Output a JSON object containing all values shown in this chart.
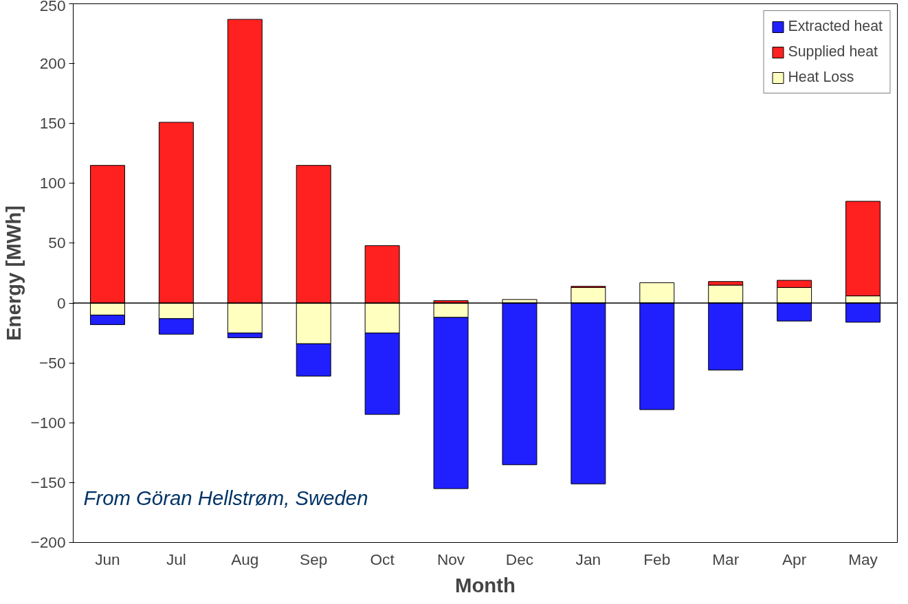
{
  "chart_data": {
    "type": "bar",
    "stacked": true,
    "xlabel": "Month",
    "ylabel": "Energy [MWh]",
    "categories": [
      "Jun",
      "Jul",
      "Aug",
      "Sep",
      "Oct",
      "Nov",
      "Dec",
      "Jan",
      "Feb",
      "Mar",
      "Apr",
      "May"
    ],
    "series": [
      {
        "name": "Heat Loss",
        "color": "#ffffc0",
        "values": [
          -10,
          -13,
          -25,
          -34,
          -25,
          -12,
          3,
          13,
          17,
          15,
          13,
          6
        ]
      },
      {
        "name": "Supplied heat",
        "color": "#ff2020",
        "values": [
          115,
          151,
          237,
          115,
          48,
          2,
          null,
          1,
          null,
          3,
          6,
          79
        ]
      },
      {
        "name": "Extracted heat",
        "color": "#2020ff",
        "values": [
          -8,
          -13,
          -4,
          -27,
          -68,
          -143,
          -135,
          -151,
          -89,
          -56,
          -15,
          -16
        ]
      }
    ],
    "ylim": [
      -200,
      250
    ],
    "yticks": [
      -200,
      -150,
      -100,
      -50,
      0,
      50,
      100,
      150,
      200,
      250
    ],
    "grid": false,
    "ref_lines": [
      {
        "axis": "y",
        "value": 0,
        "color": "#000000"
      }
    ],
    "legend": "top right",
    "annotations": [
      "From Göran Hellstrøm, Sweden"
    ]
  }
}
